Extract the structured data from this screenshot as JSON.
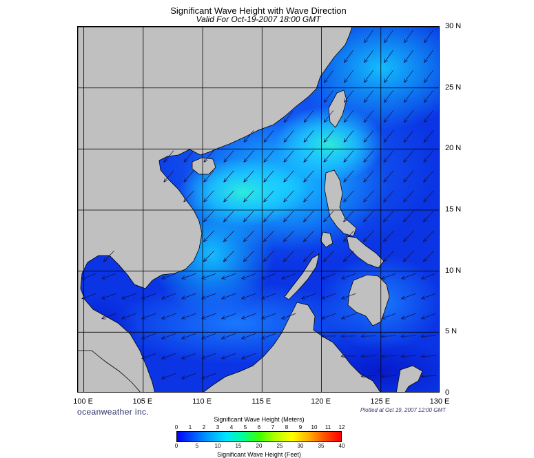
{
  "title": "Significant Wave Height with Wave Direction",
  "subtitle": "Valid For Oct-19-2007 18:00 GMT",
  "brand": "oceanweather inc.",
  "plotted": "Plotted at Oct 19, 2007 12:00 GMT",
  "map": {
    "lon_range": [
      99.5,
      130
    ],
    "lat_range": [
      0,
      30
    ],
    "lat_labels": [
      "30 N",
      "25 N",
      "20 N",
      "15 N",
      "10 N",
      "5 N",
      "0"
    ],
    "lat_values": [
      30,
      25,
      20,
      15,
      10,
      5,
      0
    ],
    "lon_labels": [
      "100 E",
      "105 E",
      "110 E",
      "115 E",
      "120 E",
      "125 E",
      "130 E"
    ],
    "lon_values": [
      100,
      105,
      110,
      115,
      120,
      125,
      130
    ],
    "land_color": "#c0c0c0",
    "arrow_color": "#101050",
    "colors": {
      "deep": "#0a2ce0",
      "mid": "#1a7aff",
      "high": "#18d4ff",
      "peak": "#2ef0e0"
    }
  },
  "legend": {
    "meters_title": "Significant Wave Height (Meters)",
    "feet_title": "Significant Wave Height (Feet)",
    "meters_ticks": [
      "0",
      "1",
      "2",
      "3",
      "4",
      "5",
      "6",
      "7",
      "8",
      "9",
      "10",
      "11",
      "12"
    ],
    "feet_ticks": [
      "0",
      "5",
      "10",
      "15",
      "20",
      "25",
      "30",
      "35",
      "40"
    ],
    "gradient": [
      "#0000ff",
      "#0055ff",
      "#00a5ff",
      "#00e5ff",
      "#00ff9a",
      "#3cff00",
      "#b4ff00",
      "#ffff00",
      "#ffb400",
      "#ff5000",
      "#ff0000"
    ]
  }
}
